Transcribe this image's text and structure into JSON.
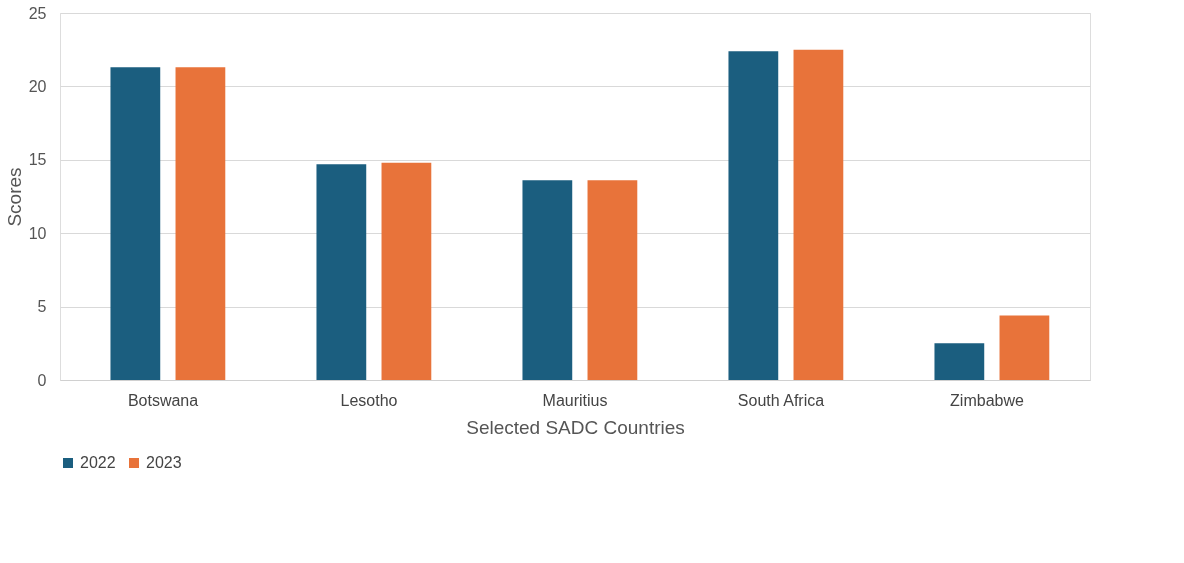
{
  "chart_data": {
    "type": "bar",
    "xlabel": "Selected SADC Countries",
    "ylabel": "Scores",
    "categories": [
      "Botswana",
      "Lesotho",
      "Mauritius",
      "South Africa",
      "Zimbabwe"
    ],
    "series": [
      {
        "name": "2022",
        "color": "#1b5e7f",
        "values": [
          21.3,
          14.7,
          13.6,
          22.4,
          2.5
        ]
      },
      {
        "name": "2023",
        "color": "#e8733a",
        "values": [
          21.3,
          14.8,
          13.6,
          22.5,
          4.4
        ]
      }
    ],
    "ylim": [
      0,
      25
    ],
    "yticks": [
      0,
      5,
      10,
      15,
      20,
      25
    ],
    "grid": "y",
    "legend": "bottom"
  }
}
